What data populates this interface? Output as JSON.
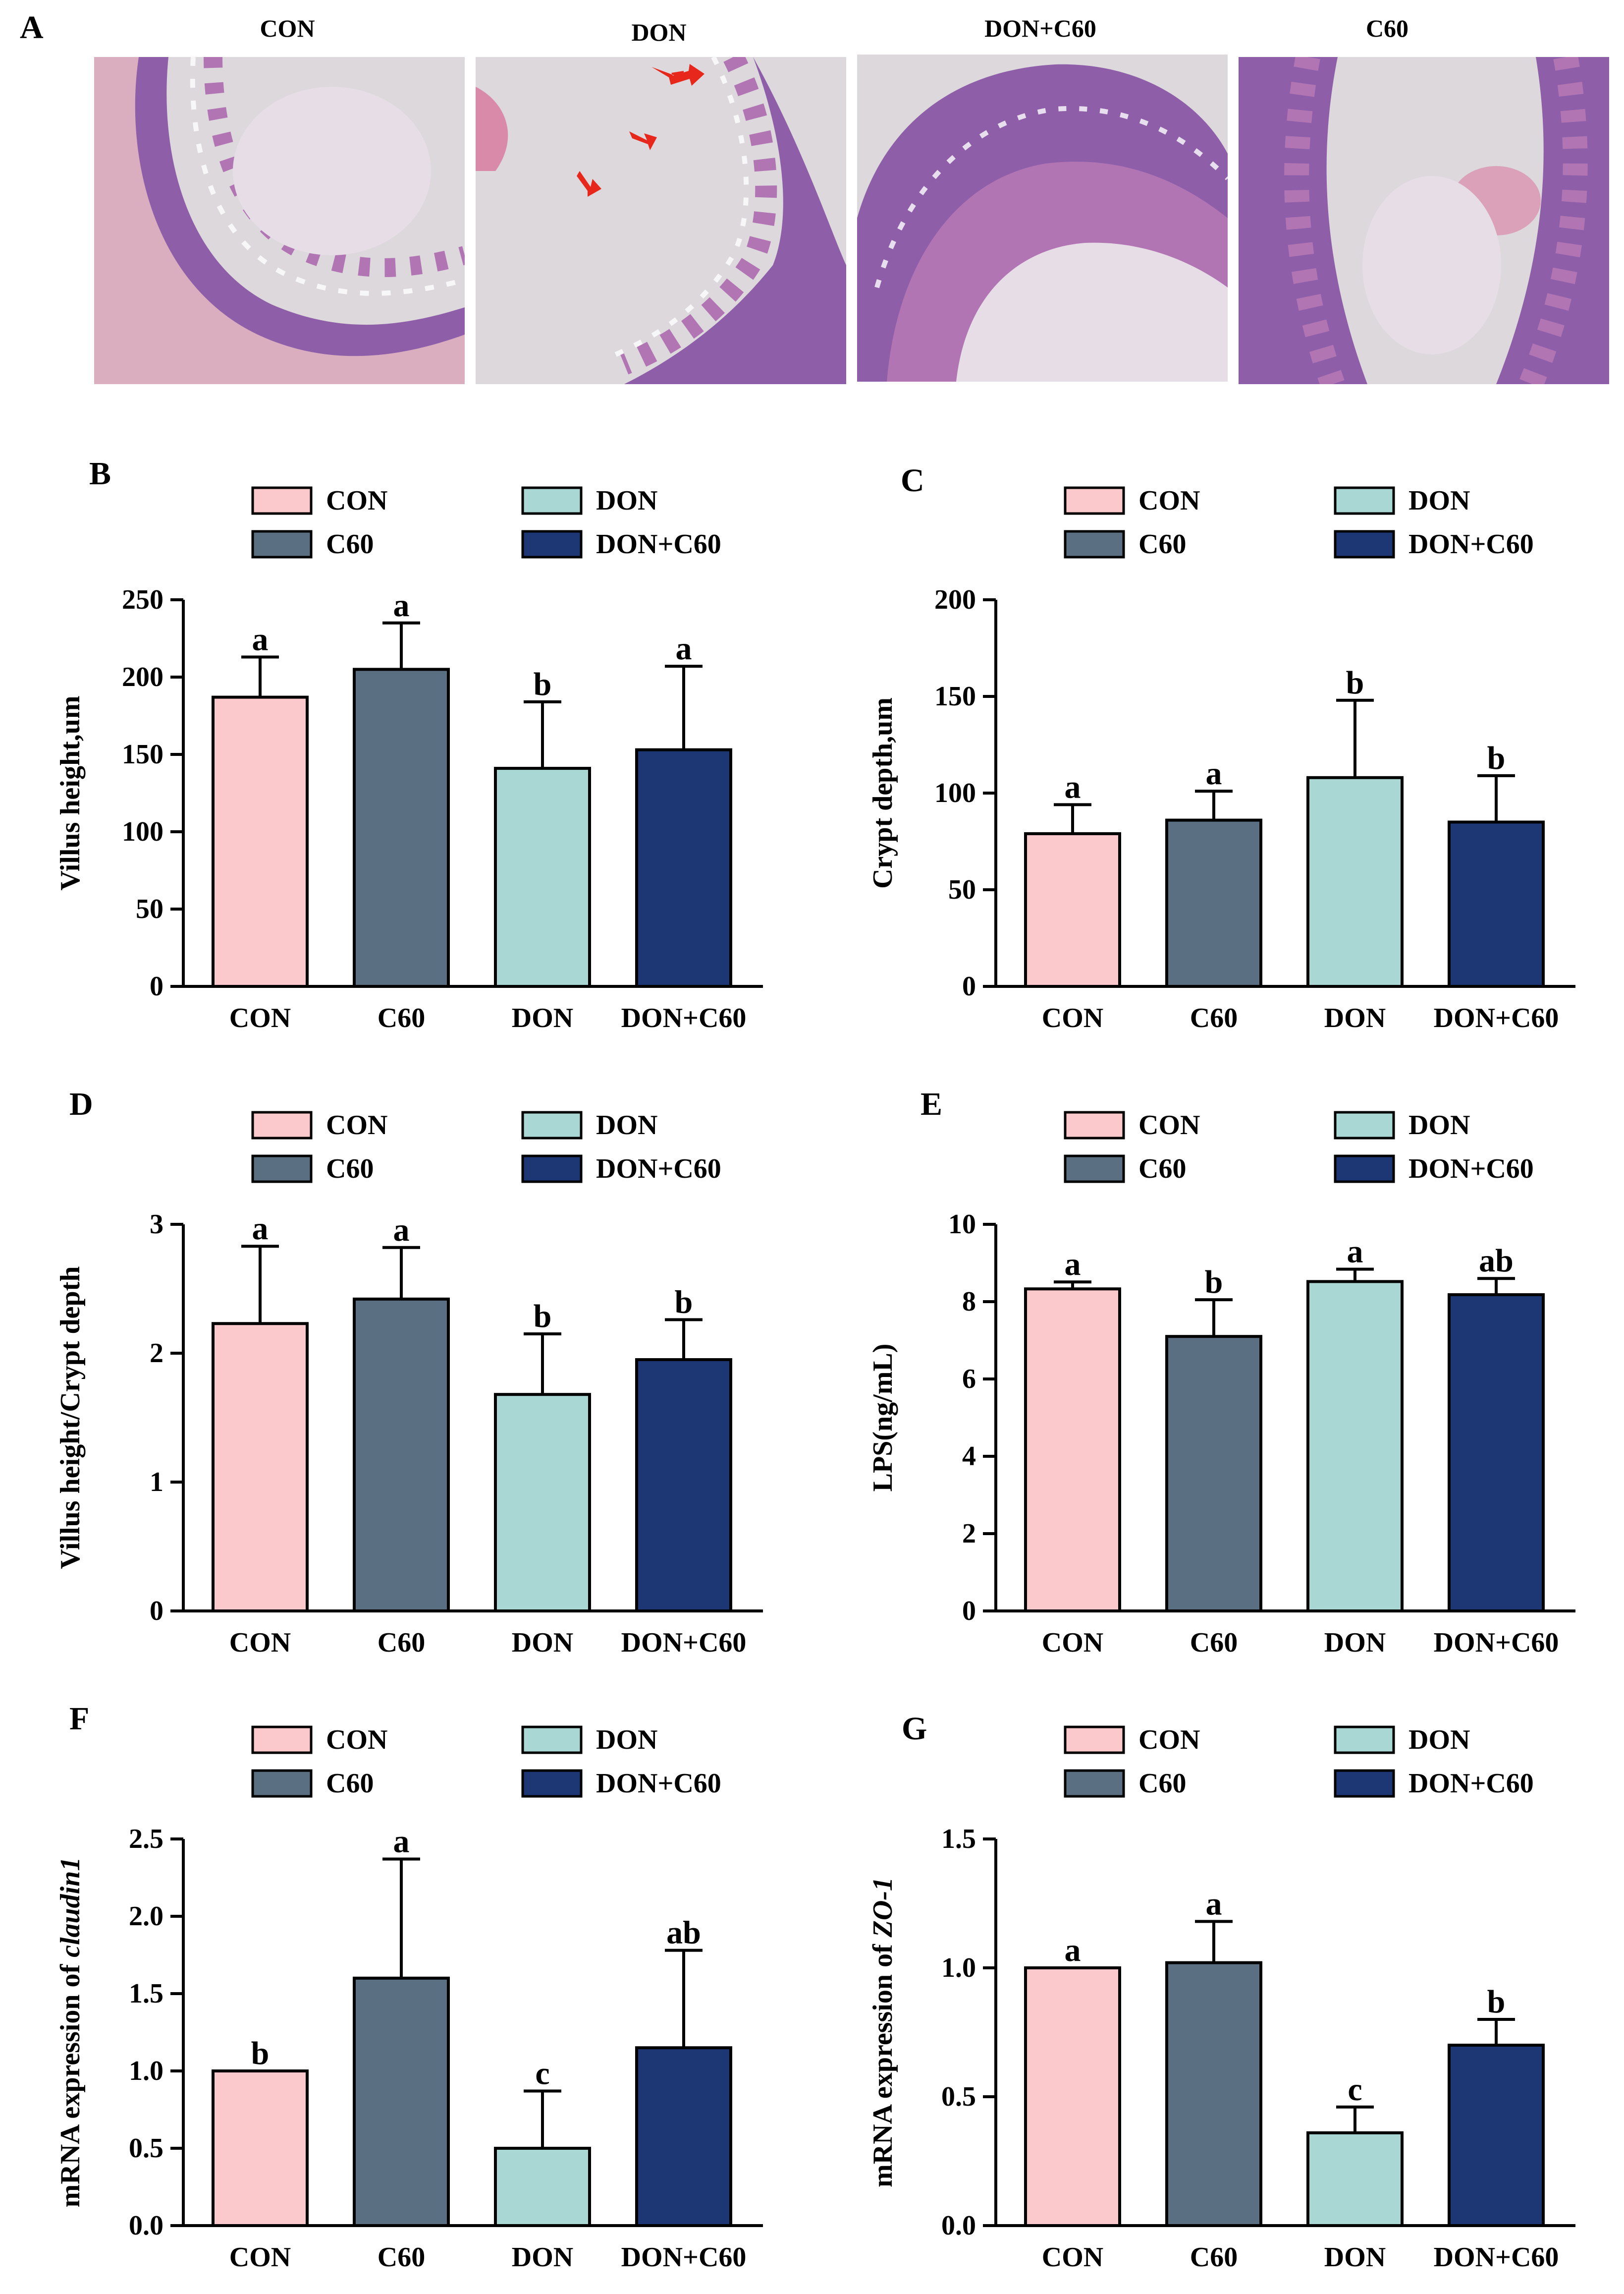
{
  "panels": {
    "A": "A",
    "B": "B",
    "C": "C",
    "D": "D",
    "E": "E",
    "F": "F",
    "G": "G"
  },
  "histology": {
    "titles": [
      "CON",
      "DON",
      "DON+C60",
      "C60"
    ],
    "colors": {
      "tissue": "#8e5fa8",
      "eosin": "#d88aa8",
      "lumen": "#e6dde6",
      "background": "#dcd8dc",
      "arrow": "#e8271c"
    }
  },
  "series_colors": {
    "CON": "#fbc8cb",
    "C60": "#5a6f82",
    "DON": "#a9d8d4",
    "DON+C60": "#1d3674"
  },
  "chart_data": [
    {
      "id": "B",
      "type": "bar",
      "title": "",
      "categories": [
        "CON",
        "C60",
        "DON",
        "DON+C60"
      ],
      "values": [
        187,
        205,
        141,
        153
      ],
      "errors": [
        26,
        30,
        43,
        54
      ],
      "letters": [
        "a",
        "a",
        "b",
        "a"
      ],
      "ylabel": "Villus height,um",
      "ylim": [
        0,
        250
      ],
      "yticks": [
        0,
        50,
        100,
        150,
        200,
        250
      ],
      "legend": [
        [
          "CON",
          "DON"
        ],
        [
          "C60",
          "DON+C60"
        ]
      ]
    },
    {
      "id": "C",
      "type": "bar",
      "title": "",
      "categories": [
        "CON",
        "C60",
        "DON",
        "DON+C60"
      ],
      "values": [
        79,
        86,
        108,
        85
      ],
      "errors": [
        15,
        15,
        40,
        24
      ],
      "letters": [
        "a",
        "a",
        "b",
        "b"
      ],
      "ylabel": "Crypt depth,um",
      "ylim": [
        0,
        200
      ],
      "yticks": [
        0,
        50,
        100,
        150,
        200
      ],
      "legend": [
        [
          "CON",
          "DON"
        ],
        [
          "C60",
          "DON+C60"
        ]
      ]
    },
    {
      "id": "D",
      "type": "bar",
      "title": "",
      "categories": [
        "CON",
        "C60",
        "DON",
        "DON+C60"
      ],
      "values": [
        2.23,
        2.42,
        1.68,
        1.95
      ],
      "errors": [
        0.6,
        0.4,
        0.47,
        0.31
      ],
      "letters": [
        "a",
        "a",
        "b",
        "b"
      ],
      "ylabel": "Villus height/Crypt depth",
      "ylim": [
        0,
        3
      ],
      "yticks": [
        0,
        1,
        2,
        3
      ],
      "legend": [
        [
          "CON",
          "DON"
        ],
        [
          "C60",
          "DON+C60"
        ]
      ]
    },
    {
      "id": "E",
      "type": "bar",
      "title": "",
      "categories": [
        "CON",
        "C60",
        "DON",
        "DON+C60"
      ],
      "values": [
        8.33,
        7.1,
        8.52,
        8.18
      ],
      "errors": [
        0.18,
        0.95,
        0.32,
        0.42
      ],
      "letters": [
        "a",
        "b",
        "a",
        "ab"
      ],
      "ylabel": "LPS(ng/mL)",
      "ylim": [
        0,
        10
      ],
      "yticks": [
        0,
        2,
        4,
        6,
        8,
        10
      ],
      "legend": [
        [
          "CON",
          "DON"
        ],
        [
          "C60",
          "DON+C60"
        ]
      ]
    },
    {
      "id": "F",
      "type": "bar",
      "title": "",
      "categories": [
        "CON",
        "C60",
        "DON",
        "DON+C60"
      ],
      "values": [
        1.0,
        1.6,
        0.5,
        1.15
      ],
      "errors": [
        0,
        0.77,
        0.37,
        0.63
      ],
      "letters": [
        "b",
        "a",
        "c",
        "ab"
      ],
      "ylabel_prefix": "mRNA expression of ",
      "ylabel_gene": "claudin1",
      "ylim": [
        0,
        2.5
      ],
      "yticks": [
        0.0,
        0.5,
        1.0,
        1.5,
        2.0,
        2.5
      ],
      "ytick_decimals": 1,
      "legend": [
        [
          "CON",
          "DON"
        ],
        [
          "C60",
          "DON+C60"
        ]
      ]
    },
    {
      "id": "G",
      "type": "bar",
      "title": "",
      "categories": [
        "CON",
        "C60",
        "DON",
        "DON+C60"
      ],
      "values": [
        1.0,
        1.02,
        0.36,
        0.7
      ],
      "errors": [
        0,
        0.16,
        0.1,
        0.1
      ],
      "letters": [
        "a",
        "a",
        "c",
        "b"
      ],
      "ylabel_prefix": "mRNA expression of ",
      "ylabel_gene": "ZO-1",
      "ylim": [
        0,
        1.5
      ],
      "yticks": [
        0.0,
        0.5,
        1.0,
        1.5
      ],
      "ytick_decimals": 1,
      "legend": [
        [
          "CON",
          "DON"
        ],
        [
          "C60",
          "DON+C60"
        ]
      ]
    }
  ]
}
